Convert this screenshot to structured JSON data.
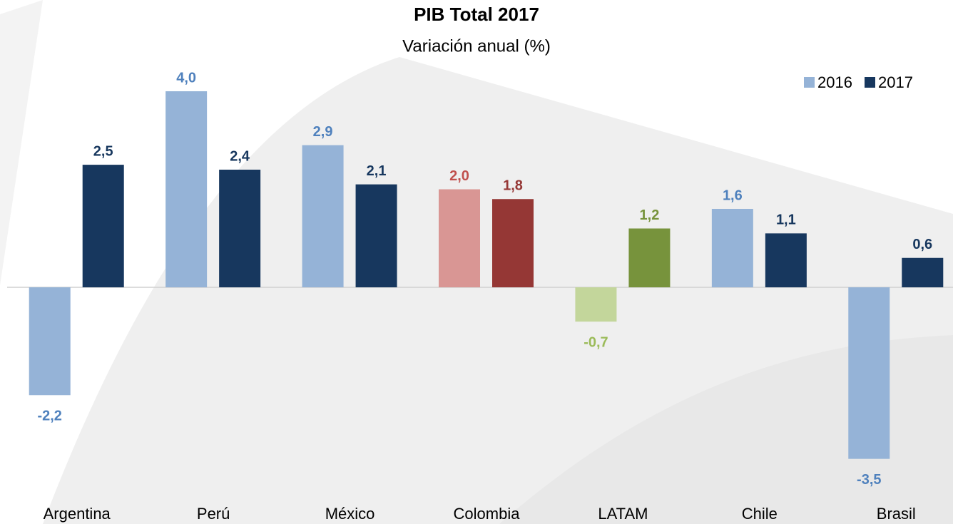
{
  "chart_data": {
    "type": "bar",
    "title": "PIB Total 2017",
    "subtitle": "Variación anual (%)",
    "categories": [
      "Argentina",
      "Perú",
      "México",
      "Colombia",
      "LATAM",
      "Chile",
      "Brasil"
    ],
    "ylim": [
      -4.5,
      4.5
    ],
    "legend": "top-right",
    "series": [
      {
        "name": "2016",
        "color": "#95b3d7",
        "colors": [
          "#95b3d7",
          "#95b3d7",
          "#95b3d7",
          "#d99694",
          "#c3d69b",
          "#95b3d7",
          "#95b3d7"
        ],
        "label_colors": [
          "#4f81bd",
          "#4f81bd",
          "#4f81bd",
          "#c0504d",
          "#9bbb59",
          "#4f81bd",
          "#4f81bd"
        ],
        "values": [
          -2.2,
          4.0,
          2.9,
          2.0,
          -0.7,
          1.6,
          -3.5
        ],
        "value_labels": [
          "-2,2",
          "4,0",
          "2,9",
          "2,0",
          "-0,7",
          "1,6",
          "-3,5"
        ]
      },
      {
        "name": "2017",
        "color": "#17375e",
        "colors": [
          "#17375e",
          "#17375e",
          "#17375e",
          "#953735",
          "#77933c",
          "#17375e",
          "#17375e"
        ],
        "label_colors": [
          "#17375e",
          "#17375e",
          "#17375e",
          "#953735",
          "#77933c",
          "#17375e",
          "#17375e"
        ],
        "values": [
          2.5,
          2.4,
          2.1,
          1.8,
          1.2,
          1.1,
          0.6
        ],
        "value_labels": [
          "2,5",
          "2,4",
          "2,1",
          "1,8",
          "1,2",
          "1,1",
          "0,6"
        ]
      }
    ]
  }
}
